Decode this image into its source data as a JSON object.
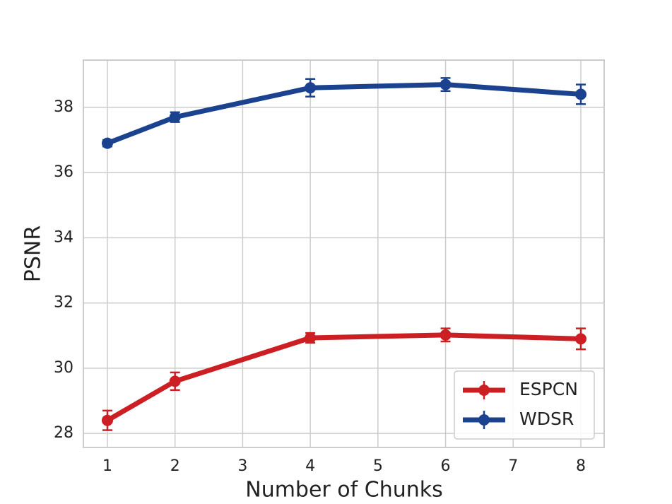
{
  "chart_data": {
    "type": "line",
    "xlabel": "Number of Chunks",
    "ylabel": "PSNR",
    "x": [
      1,
      2,
      4,
      6,
      8
    ],
    "series": [
      {
        "name": "ESPCN",
        "color": "#cc1f24",
        "values": [
          28.4,
          29.6,
          30.93,
          31.02,
          30.9
        ],
        "errors": [
          0.3,
          0.27,
          0.15,
          0.2,
          0.32
        ]
      },
      {
        "name": "WDSR",
        "color": "#1a428f",
        "values": [
          36.9,
          37.7,
          38.6,
          38.7,
          38.4
        ],
        "errors": [
          0.1,
          0.15,
          0.27,
          0.2,
          0.3
        ]
      }
    ],
    "xlim": [
      0.645,
      8.345
    ],
    "ylim": [
      27.57,
      39.45
    ],
    "xticks": [
      1,
      2,
      3,
      4,
      5,
      6,
      7,
      8
    ],
    "yticks": [
      28,
      30,
      32,
      34,
      36,
      38
    ],
    "grid": true,
    "legend": "lower right"
  }
}
